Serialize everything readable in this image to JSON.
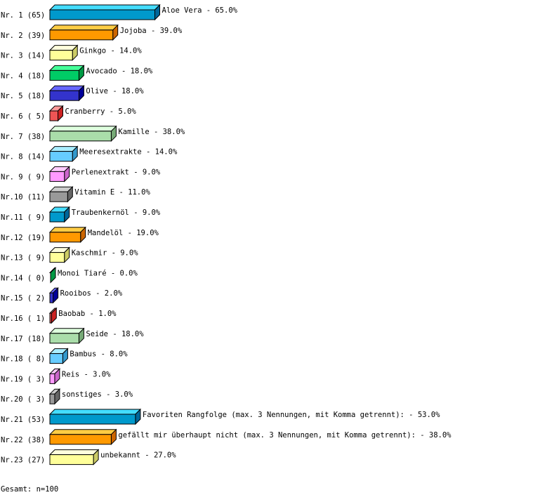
{
  "chart_data": {
    "type": "bar",
    "orientation": "horizontal",
    "style": "3d",
    "categories": [
      "Aloe Vera",
      "Jojoba",
      "Ginkgo",
      "Avocado",
      "Olive",
      "Cranberry",
      "Kamille",
      "Meeresextrakte",
      "Perlenextrakt",
      "Vitamin E",
      "Traubenkernöl",
      "Mandelöl",
      "Kaschmir",
      "Monoi Tiaré",
      "Rooibos",
      "Baobab",
      "Seide",
      "Bambus",
      "Reis",
      "sonstiges",
      "Favoriten Rangfolge (max. 3 Nennungen, mit Komma getrennt):",
      "gefällt mir überhaupt nicht (max. 3 Nennungen, mit Komma getrennt):",
      "unbekannt"
    ],
    "counts": [
      65,
      39,
      14,
      18,
      18,
      5,
      38,
      14,
      9,
      11,
      9,
      19,
      9,
      0,
      2,
      1,
      18,
      8,
      3,
      3,
      53,
      38,
      27
    ],
    "values": [
      65.0,
      39.0,
      14.0,
      18.0,
      18.0,
      5.0,
      38.0,
      14.0,
      9.0,
      11.0,
      9.0,
      19.0,
      9.0,
      0.0,
      2.0,
      1.0,
      18.0,
      8.0,
      3.0,
      3.0,
      53.0,
      38.0,
      27.0
    ],
    "unit": "%",
    "palette": [
      [
        "#0099cc",
        "#44ddff",
        "#006699"
      ],
      [
        "#ff9900",
        "#ffcc44",
        "#cc6600"
      ],
      [
        "#ffff99",
        "#ffffdd",
        "#cccc66"
      ],
      [
        "#00cc66",
        "#44ff99",
        "#009944"
      ],
      [
        "#3333cc",
        "#6666ff",
        "#000099"
      ],
      [
        "#ee5555",
        "#ff9999",
        "#cc2222"
      ],
      [
        "#aaddaa",
        "#ddffdd",
        "#77aa77"
      ],
      [
        "#66ccff",
        "#aaeeff",
        "#3399cc"
      ],
      [
        "#ff99ff",
        "#ffccff",
        "#cc66cc"
      ],
      [
        "#999999",
        "#cccccc",
        "#666666"
      ]
    ]
  },
  "total_label": "Gesamt: n=100"
}
